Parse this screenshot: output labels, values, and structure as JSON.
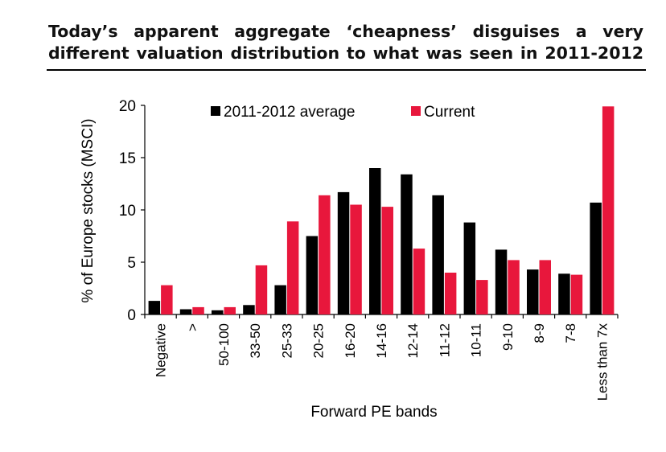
{
  "title": "Today’s apparent aggregate ‘cheapness’ disguises a very different valuation distribution to what was seen in 2011-2012",
  "colors": {
    "series_a": "#000000",
    "series_b": "#e8173c",
    "axis": "#000000"
  },
  "chart_data": {
    "type": "bar",
    "title": "Today’s apparent aggregate ‘cheapness’ disguises a very different valuation distribution to what was seen in 2011-2012",
    "xlabel": "Forward PE bands",
    "ylabel": "% of Europe stocks (MSCI)",
    "ylim": [
      0,
      20
    ],
    "yticks": [
      0,
      5,
      10,
      15,
      20
    ],
    "grid": false,
    "legend": "top",
    "categories": [
      "Negative",
      ">",
      "50-100",
      "33-50",
      "25-33",
      "20-25",
      "16-20",
      "14-16",
      "12-14",
      "11-12",
      "10-11",
      "9-10",
      "8-9",
      "7-8",
      "Less than 7x"
    ],
    "series": [
      {
        "name": "2011-2012 average",
        "values": [
          1.3,
          0.5,
          0.4,
          0.9,
          2.8,
          7.5,
          11.7,
          14.0,
          13.4,
          11.4,
          8.8,
          6.2,
          4.3,
          3.9,
          10.7
        ]
      },
      {
        "name": "Current",
        "values": [
          2.8,
          0.7,
          0.7,
          4.7,
          8.9,
          11.4,
          10.5,
          10.3,
          6.3,
          4.0,
          3.3,
          5.2,
          5.2,
          3.8,
          19.9
        ]
      }
    ]
  }
}
